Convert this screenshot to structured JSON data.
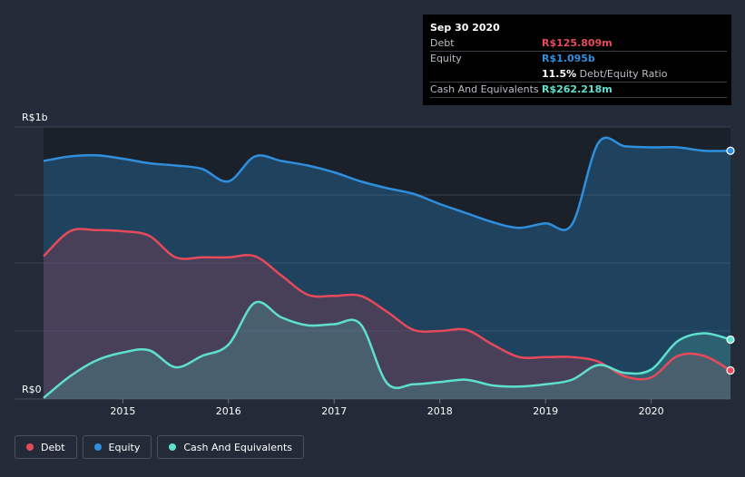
{
  "chart_data": {
    "type": "area",
    "y_axis_labels": {
      "top": "R$1b",
      "bottom": "R$0"
    },
    "x_tick_labels": [
      "2015",
      "2016",
      "2017",
      "2018",
      "2019",
      "2020"
    ],
    "ylim": [
      0,
      1.2
    ],
    "xlim": [
      2014.25,
      2020.75
    ],
    "x_ticks": [
      2015,
      2016,
      2017,
      2018,
      2019,
      2020
    ],
    "series": [
      {
        "name": "Equity",
        "color": "#2f8fdc",
        "x": [
          2014.25,
          2014.5,
          2014.75,
          2015.0,
          2015.25,
          2015.5,
          2015.75,
          2016.0,
          2016.25,
          2016.5,
          2016.75,
          2017.0,
          2017.25,
          2017.5,
          2017.75,
          2018.0,
          2018.25,
          2018.5,
          2018.75,
          2019.0,
          2019.25,
          2019.5,
          2019.75,
          2020.0,
          2020.25,
          2020.5,
          2020.75
        ],
        "values": [
          1.05,
          1.07,
          1.075,
          1.06,
          1.04,
          1.03,
          1.015,
          0.96,
          1.07,
          1.05,
          1.03,
          1.0,
          0.96,
          0.93,
          0.905,
          0.86,
          0.82,
          0.78,
          0.755,
          0.775,
          0.77,
          1.13,
          1.115,
          1.11,
          1.11,
          1.095,
          1.095
        ]
      },
      {
        "name": "Debt",
        "color": "#e64a5a",
        "x": [
          2014.25,
          2014.5,
          2014.75,
          2015.0,
          2015.25,
          2015.5,
          2015.75,
          2016.0,
          2016.25,
          2016.5,
          2016.75,
          2017.0,
          2017.25,
          2017.5,
          2017.75,
          2018.0,
          2018.25,
          2018.5,
          2018.75,
          2019.0,
          2019.25,
          2019.5,
          2019.75,
          2020.0,
          2020.25,
          2020.5,
          2020.75
        ],
        "values": [
          0.63,
          0.74,
          0.745,
          0.74,
          0.72,
          0.625,
          0.625,
          0.625,
          0.63,
          0.545,
          0.46,
          0.455,
          0.455,
          0.385,
          0.305,
          0.3,
          0.305,
          0.24,
          0.185,
          0.185,
          0.185,
          0.165,
          0.1,
          0.095,
          0.19,
          0.19,
          0.126
        ]
      },
      {
        "name": "Cash And Equivalents",
        "color": "#5ee0cf",
        "x": [
          2014.25,
          2014.5,
          2014.75,
          2015.0,
          2015.25,
          2015.5,
          2015.75,
          2016.0,
          2016.25,
          2016.5,
          2016.75,
          2017.0,
          2017.25,
          2017.5,
          2017.75,
          2018.0,
          2018.25,
          2018.5,
          2018.75,
          2019.0,
          2019.25,
          2019.5,
          2019.75,
          2020.0,
          2020.25,
          2020.5,
          2020.75
        ],
        "values": [
          0.005,
          0.1,
          0.17,
          0.205,
          0.215,
          0.14,
          0.19,
          0.24,
          0.425,
          0.36,
          0.325,
          0.33,
          0.33,
          0.07,
          0.065,
          0.075,
          0.085,
          0.06,
          0.055,
          0.065,
          0.085,
          0.15,
          0.115,
          0.13,
          0.255,
          0.29,
          0.262
        ]
      }
    ]
  },
  "tooltip": {
    "date": "Sep 30 2020",
    "debt_label": "Debt",
    "debt_value": "R$125.809m",
    "equity_label": "Equity",
    "equity_value": "R$1.095b",
    "ratio_value": "11.5%",
    "ratio_label": "Debt/Equity Ratio",
    "cash_label": "Cash And Equivalents",
    "cash_value": "R$262.218m"
  },
  "legend": {
    "debt": "Debt",
    "equity": "Equity",
    "cash": "Cash And Equivalents"
  },
  "colors": {
    "debt": "#e64a5a",
    "equity": "#2f8fdc",
    "cash": "#5ee0cf"
  }
}
